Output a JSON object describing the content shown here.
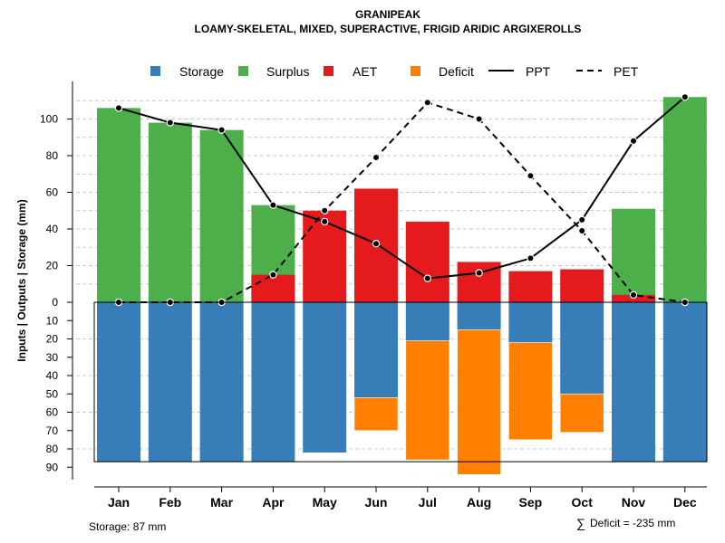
{
  "chart_data": {
    "type": "bar",
    "title": "GRANIPEAK",
    "subtitle": "LOAMY-SKELETAL, MIXED, SUPERACTIVE, FRIGID ARIDIC ARGIXEROLLS",
    "ylabel": "Inputs | Outputs | Storage    (mm)",
    "categories": [
      "Jan",
      "Feb",
      "Mar",
      "Apr",
      "May",
      "Jun",
      "Jul",
      "Aug",
      "Sep",
      "Oct",
      "Nov",
      "Dec"
    ],
    "ylim": [
      -95,
      115
    ],
    "yticks_upper": [
      0,
      20,
      40,
      60,
      80,
      100
    ],
    "yticks_lower": [
      10,
      20,
      30,
      40,
      50,
      60,
      70,
      80,
      90
    ],
    "storage_capacity": 87,
    "series": [
      {
        "name": "Storage",
        "color": "#377EB8",
        "values": [
          87,
          87,
          87,
          87,
          82,
          52,
          21,
          15,
          22,
          50,
          87,
          87
        ]
      },
      {
        "name": "Surplus",
        "color": "#4DAF4A",
        "values": [
          106,
          98,
          94,
          53,
          0,
          0,
          0,
          0,
          0,
          0,
          51,
          112
        ]
      },
      {
        "name": "AET",
        "color": "#E41A1C",
        "values": [
          0,
          0,
          0,
          15,
          50,
          62,
          44,
          22,
          17,
          18,
          4,
          0
        ]
      },
      {
        "name": "Deficit",
        "color": "#FF7F00",
        "values": [
          0,
          0,
          0,
          0,
          0,
          18,
          65,
          79,
          53,
          21,
          0,
          0
        ]
      },
      {
        "name": "PPT",
        "color": "#000000",
        "style": "solid",
        "values": [
          106,
          98,
          94,
          53,
          44,
          32,
          13,
          16,
          24,
          45,
          88,
          112
        ]
      },
      {
        "name": "PET",
        "color": "#000000",
        "style": "dashed",
        "values": [
          0,
          0,
          0,
          15,
          50,
          79,
          109,
          100,
          69,
          39,
          4,
          0
        ]
      }
    ],
    "legend": [
      "Storage",
      "Surplus",
      "AET",
      "Deficit",
      "PPT",
      "PET"
    ],
    "storage_note": "Storage: 87 mm",
    "deficit_note": "Deficit = -235 mm",
    "deficit_symbol": "∑"
  }
}
